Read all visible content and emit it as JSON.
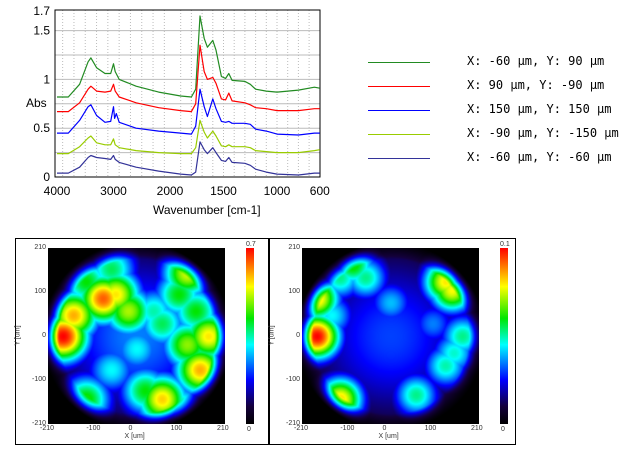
{
  "chart_data": [
    {
      "type": "line",
      "title": "",
      "xlabel": "Wavenumber [cm-1]",
      "ylabel": "Abs",
      "xlim": [
        4000,
        600
      ],
      "ylim": [
        0,
        1.7
      ],
      "grid": true,
      "xticks": [
        "4000",
        "3000",
        "2000",
        "1500",
        "1000",
        "600"
      ],
      "yticks": [
        "0",
        "0.5",
        "1",
        "1.5",
        "1.7"
      ],
      "legend_placement": "right",
      "series": [
        {
          "name": "X: -60 μm, Y: 90 μm",
          "color": "#228b22",
          "points": [
            [
              4000,
              0.82
            ],
            [
              3800,
              0.82
            ],
            [
              3600,
              0.95
            ],
            [
              3450,
              1.18
            ],
            [
              3400,
              1.22
            ],
            [
              3300,
              1.12
            ],
            [
              3150,
              1.06
            ],
            [
              3050,
              1.06
            ],
            [
              3000,
              1.16
            ],
            [
              2970,
              1.08
            ],
            [
              2900,
              1.0
            ],
            [
              2600,
              0.93
            ],
            [
              2200,
              0.87
            ],
            [
              1900,
              0.83
            ],
            [
              1800,
              0.82
            ],
            [
              1760,
              0.9
            ],
            [
              1720,
              1.65
            ],
            [
              1680,
              1.42
            ],
            [
              1650,
              1.33
            ],
            [
              1600,
              1.4
            ],
            [
              1570,
              1.3
            ],
            [
              1520,
              1.03
            ],
            [
              1480,
              1.01
            ],
            [
              1450,
              1.06
            ],
            [
              1420,
              0.99
            ],
            [
              1300,
              0.98
            ],
            [
              1250,
              0.95
            ],
            [
              1200,
              0.9
            ],
            [
              1100,
              0.88
            ],
            [
              1000,
              0.87
            ],
            [
              800,
              0.89
            ],
            [
              650,
              0.92
            ],
            [
              600,
              0.91
            ]
          ]
        },
        {
          "name": "X: 90 μm, Y: -90 μm",
          "color": "#ff0000",
          "points": [
            [
              4000,
              0.67
            ],
            [
              3800,
              0.67
            ],
            [
              3600,
              0.76
            ],
            [
              3450,
              0.9
            ],
            [
              3400,
              0.93
            ],
            [
              3300,
              0.88
            ],
            [
              3150,
              0.87
            ],
            [
              3050,
              0.88
            ],
            [
              3000,
              0.95
            ],
            [
              2970,
              0.88
            ],
            [
              2900,
              0.82
            ],
            [
              2600,
              0.76
            ],
            [
              2200,
              0.71
            ],
            [
              1900,
              0.68
            ],
            [
              1800,
              0.67
            ],
            [
              1760,
              0.75
            ],
            [
              1720,
              1.35
            ],
            [
              1680,
              1.08
            ],
            [
              1650,
              1.0
            ],
            [
              1600,
              1.02
            ],
            [
              1570,
              0.96
            ],
            [
              1520,
              0.8
            ],
            [
              1480,
              0.79
            ],
            [
              1450,
              0.86
            ],
            [
              1420,
              0.78
            ],
            [
              1300,
              0.76
            ],
            [
              1250,
              0.74
            ],
            [
              1200,
              0.71
            ],
            [
              1100,
              0.7
            ],
            [
              1000,
              0.68
            ],
            [
              800,
              0.68
            ],
            [
              650,
              0.7
            ],
            [
              600,
              0.7
            ]
          ]
        },
        {
          "name": "X: 150 μm, Y: 150 μm",
          "color": "#0000ff",
          "points": [
            [
              4000,
              0.45
            ],
            [
              3800,
              0.45
            ],
            [
              3600,
              0.58
            ],
            [
              3450,
              0.72
            ],
            [
              3400,
              0.74
            ],
            [
              3300,
              0.63
            ],
            [
              3150,
              0.56
            ],
            [
              3050,
              0.57
            ],
            [
              3000,
              0.72
            ],
            [
              2980,
              0.6
            ],
            [
              2950,
              0.65
            ],
            [
              2900,
              0.56
            ],
            [
              2600,
              0.5
            ],
            [
              2200,
              0.47
            ],
            [
              1900,
              0.45
            ],
            [
              1800,
              0.44
            ],
            [
              1760,
              0.52
            ],
            [
              1720,
              0.9
            ],
            [
              1680,
              0.72
            ],
            [
              1650,
              0.62
            ],
            [
              1600,
              0.8
            ],
            [
              1570,
              0.7
            ],
            [
              1520,
              0.57
            ],
            [
              1480,
              0.56
            ],
            [
              1450,
              0.57
            ],
            [
              1420,
              0.55
            ],
            [
              1300,
              0.55
            ],
            [
              1250,
              0.54
            ],
            [
              1200,
              0.49
            ],
            [
              1100,
              0.47
            ],
            [
              1000,
              0.44
            ],
            [
              800,
              0.43
            ],
            [
              650,
              0.45
            ],
            [
              600,
              0.45
            ]
          ]
        },
        {
          "name": "X: -90 μm, Y: -150 μm",
          "color": "#99cc00",
          "points": [
            [
              4000,
              0.24
            ],
            [
              3800,
              0.24
            ],
            [
              3600,
              0.31
            ],
            [
              3450,
              0.4
            ],
            [
              3400,
              0.42
            ],
            [
              3300,
              0.35
            ],
            [
              3150,
              0.33
            ],
            [
              3050,
              0.33
            ],
            [
              3000,
              0.39
            ],
            [
              2970,
              0.33
            ],
            [
              2900,
              0.3
            ],
            [
              2600,
              0.27
            ],
            [
              2200,
              0.25
            ],
            [
              1900,
              0.24
            ],
            [
              1800,
              0.24
            ],
            [
              1760,
              0.3
            ],
            [
              1720,
              0.58
            ],
            [
              1680,
              0.46
            ],
            [
              1650,
              0.4
            ],
            [
              1600,
              0.47
            ],
            [
              1570,
              0.42
            ],
            [
              1520,
              0.32
            ],
            [
              1480,
              0.31
            ],
            [
              1450,
              0.33
            ],
            [
              1420,
              0.31
            ],
            [
              1300,
              0.31
            ],
            [
              1250,
              0.3
            ],
            [
              1200,
              0.27
            ],
            [
              1100,
              0.26
            ],
            [
              1000,
              0.25
            ],
            [
              800,
              0.25
            ],
            [
              650,
              0.27
            ],
            [
              600,
              0.28
            ]
          ]
        },
        {
          "name": "X: -60 μm, Y: -60 μm",
          "color": "#333399",
          "points": [
            [
              4000,
              0.04
            ],
            [
              3800,
              0.04
            ],
            [
              3600,
              0.1
            ],
            [
              3450,
              0.2
            ],
            [
              3400,
              0.22
            ],
            [
              3300,
              0.2
            ],
            [
              3150,
              0.19
            ],
            [
              3050,
              0.18
            ],
            [
              3000,
              0.22
            ],
            [
              2970,
              0.18
            ],
            [
              2900,
              0.15
            ],
            [
              2600,
              0.1
            ],
            [
              2200,
              0.06
            ],
            [
              1900,
              0.03
            ],
            [
              1800,
              0.02
            ],
            [
              1760,
              0.05
            ],
            [
              1720,
              0.36
            ],
            [
              1680,
              0.28
            ],
            [
              1650,
              0.24
            ],
            [
              1600,
              0.3
            ],
            [
              1570,
              0.25
            ],
            [
              1520,
              0.17
            ],
            [
              1480,
              0.16
            ],
            [
              1450,
              0.2
            ],
            [
              1420,
              0.15
            ],
            [
              1300,
              0.14
            ],
            [
              1250,
              0.12
            ],
            [
              1200,
              0.08
            ],
            [
              1100,
              0.05
            ],
            [
              1000,
              0.03
            ],
            [
              800,
              0.02
            ],
            [
              650,
              0.04
            ],
            [
              600,
              0.04
            ]
          ]
        }
      ]
    },
    {
      "type": "heatmap",
      "xlabel": "X [um]",
      "ylabel": "Y [um]",
      "xlim": [
        -210,
        210
      ],
      "ylim": [
        -210,
        210
      ],
      "xticks": [
        "-210",
        "-100",
        "0",
        "100",
        "210"
      ],
      "yticks": [
        "210",
        "100",
        "0",
        "-100",
        "-210"
      ],
      "colorbar": {
        "max": "0.7",
        "min": "0"
      },
      "sigma": 45,
      "hotspots": [
        [
          0,
          0,
          0.35,
          140
        ],
        [
          -175,
          0,
          1
        ],
        [
          -150,
          50,
          0.85
        ],
        [
          -80,
          90,
          0.92
        ],
        [
          -50,
          100,
          0.8
        ],
        [
          -120,
          130,
          0.6
        ],
        [
          -60,
          160,
          0.55
        ],
        [
          -20,
          60,
          0.72
        ],
        [
          120,
          150,
          0.75
        ],
        [
          100,
          100,
          0.6
        ],
        [
          60,
          30,
          0.55
        ],
        [
          150,
          -80,
          0.85
        ],
        [
          170,
          0,
          0.8
        ],
        [
          120,
          -20,
          0.7
        ],
        [
          60,
          -150,
          0.82
        ],
        [
          20,
          -130,
          0.6
        ],
        [
          100,
          -170,
          0.55
        ],
        [
          -120,
          -150,
          0.62
        ],
        [
          -60,
          -80,
          0.45
        ],
        [
          0,
          -30,
          0.45
        ],
        [
          40,
          60,
          0.5
        ],
        [
          140,
          60,
          0.6
        ]
      ]
    },
    {
      "type": "heatmap",
      "xlabel": "X [um]",
      "ylabel": "Y [um]",
      "xlim": [
        -210,
        210
      ],
      "ylim": [
        -210,
        210
      ],
      "xticks": [
        "-210",
        "-100",
        "0",
        "100",
        "210"
      ],
      "yticks": [
        "210",
        "100",
        "0",
        "-100",
        "-210"
      ],
      "colorbar": {
        "max": "0.1",
        "min": "0"
      },
      "sigma": 40,
      "hotspots": [
        [
          0,
          0,
          0.3,
          140
        ],
        [
          -175,
          0,
          1
        ],
        [
          -175,
          90,
          0.82
        ],
        [
          -90,
          170,
          0.62
        ],
        [
          -60,
          140,
          0.52
        ],
        [
          -120,
          140,
          0.52
        ],
        [
          130,
          130,
          0.8
        ],
        [
          145,
          110,
          0.78
        ],
        [
          170,
          0,
          0.52
        ],
        [
          130,
          -70,
          0.5
        ],
        [
          60,
          -140,
          0.52
        ],
        [
          -120,
          -150,
          0.82
        ],
        [
          0,
          80,
          0.4
        ],
        [
          -140,
          50,
          0.45
        ],
        [
          100,
          30,
          0.35
        ],
        [
          150,
          -40,
          0.48
        ]
      ]
    }
  ]
}
